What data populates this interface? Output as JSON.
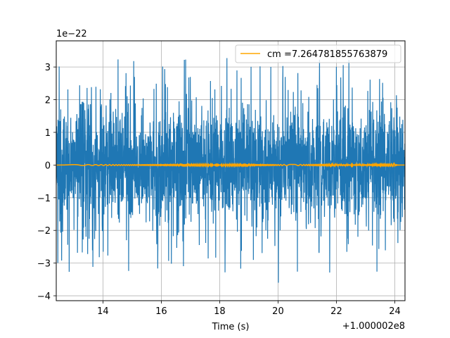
{
  "chart_data": {
    "type": "line",
    "title": "",
    "xlabel": "Time (s)",
    "ylabel": "",
    "x_offset_label": "+1.000002e8",
    "y_scale_label": "1e−22",
    "xlim": [
      12.4,
      24.35
    ],
    "ylim": [
      -4.15,
      3.8
    ],
    "x_ticks": [
      14,
      16,
      18,
      20,
      22,
      24
    ],
    "x_tick_labels": [
      "14",
      "16",
      "18",
      "20",
      "22",
      "24"
    ],
    "y_ticks": [
      -4,
      -3,
      -2,
      -1,
      0,
      1,
      2,
      3
    ],
    "y_tick_labels": [
      "−4",
      "−3",
      "−2",
      "−1",
      "0",
      "1",
      "2",
      "3"
    ],
    "grid": true,
    "legend_position": "top-right",
    "series": [
      {
        "name": "",
        "kind": "noise",
        "color": "#1f77b4",
        "x_range": [
          12.4,
          24.35
        ],
        "typical_amplitude": 1.6,
        "peak_max": 3.5,
        "peak_min": -3.8
      },
      {
        "name": "cm =7.264781855763879",
        "kind": "chirp",
        "color": "#ffa500",
        "x_range": [
          12.4,
          24.35
        ],
        "peak_x": 24.0,
        "peak_amplitude": 0.12
      }
    ]
  }
}
